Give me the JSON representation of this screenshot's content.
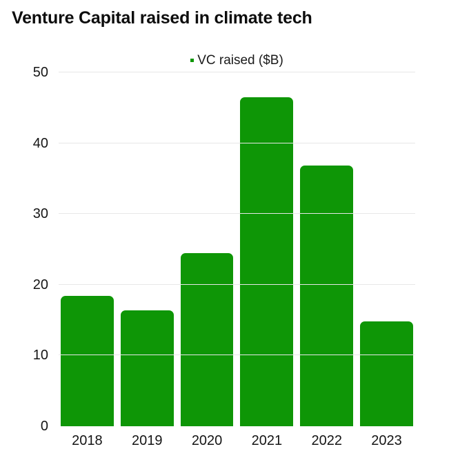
{
  "title": "Venture Capital raised in climate tech",
  "legend": {
    "label": "VC raised ($B)",
    "marker_color": "#0e9606"
  },
  "colors": {
    "bar": "#0e9606",
    "gridline": "#e7e7e7",
    "text": "#151515",
    "title_text": "#0d0d0d",
    "background": "#ffffff"
  },
  "chart_data": {
    "type": "bar",
    "title": "Venture Capital raised in climate tech",
    "categories": [
      "2018",
      "2019",
      "2020",
      "2021",
      "2022",
      "2023"
    ],
    "series": [
      {
        "name": "VC raised ($B)",
        "values": [
          18.4,
          16.4,
          24.5,
          46.5,
          36.8,
          14.8
        ]
      }
    ],
    "xlabel": "",
    "ylabel": "",
    "ylim": [
      0,
      50
    ],
    "yticks": [
      0,
      10,
      20,
      30,
      40,
      50
    ],
    "grid": true,
    "gridline_at_zero": false,
    "legend_position": "top-center",
    "bar_color": "#0e9606"
  }
}
